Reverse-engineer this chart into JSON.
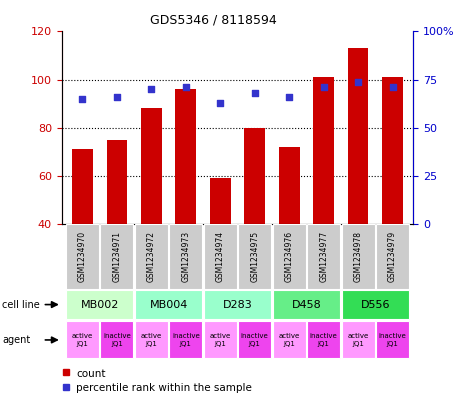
{
  "title": "GDS5346 / 8118594",
  "samples": [
    "GSM1234970",
    "GSM1234971",
    "GSM1234972",
    "GSM1234973",
    "GSM1234974",
    "GSM1234975",
    "GSM1234976",
    "GSM1234977",
    "GSM1234978",
    "GSM1234979"
  ],
  "count_values": [
    71,
    75,
    88,
    96,
    59,
    80,
    72,
    101,
    113,
    101
  ],
  "percentile_values": [
    65,
    66,
    70,
    71,
    63,
    68,
    66,
    71,
    74,
    71
  ],
  "ylim_left": [
    40,
    120
  ],
  "ylim_right": [
    0,
    100
  ],
  "yticks_left": [
    40,
    60,
    80,
    100,
    120
  ],
  "yticks_right": [
    0,
    25,
    50,
    75,
    100
  ],
  "ytick_labels_right": [
    "0",
    "25",
    "50",
    "75",
    "100%"
  ],
  "bar_color": "#cc0000",
  "dot_color": "#3333cc",
  "cell_lines": [
    {
      "name": "MB002",
      "cols": [
        0,
        1
      ],
      "color": "#ccffcc"
    },
    {
      "name": "MB004",
      "cols": [
        2,
        3
      ],
      "color": "#99ffcc"
    },
    {
      "name": "D283",
      "cols": [
        4,
        5
      ],
      "color": "#99ffcc"
    },
    {
      "name": "D458",
      "cols": [
        6,
        7
      ],
      "color": "#66ee88"
    },
    {
      "name": "D556",
      "cols": [
        8,
        9
      ],
      "color": "#33dd55"
    }
  ],
  "agents": [
    "active\nJQ1",
    "inactive\nJQ1",
    "active\nJQ1",
    "inactive\nJQ1",
    "active\nJQ1",
    "inactive\nJQ1",
    "active\nJQ1",
    "inactive\nJQ1",
    "active\nJQ1",
    "inactive\nJQ1"
  ],
  "agent_active_color": "#ff99ff",
  "agent_inactive_color": "#ee44ee",
  "background_color": "#ffffff",
  "grid_color": "#000000",
  "tick_label_color_left": "#cc0000",
  "tick_label_color_right": "#0000cc",
  "sample_box_color": "#cccccc",
  "legend_count_color": "#cc0000",
  "legend_dot_color": "#3333cc"
}
